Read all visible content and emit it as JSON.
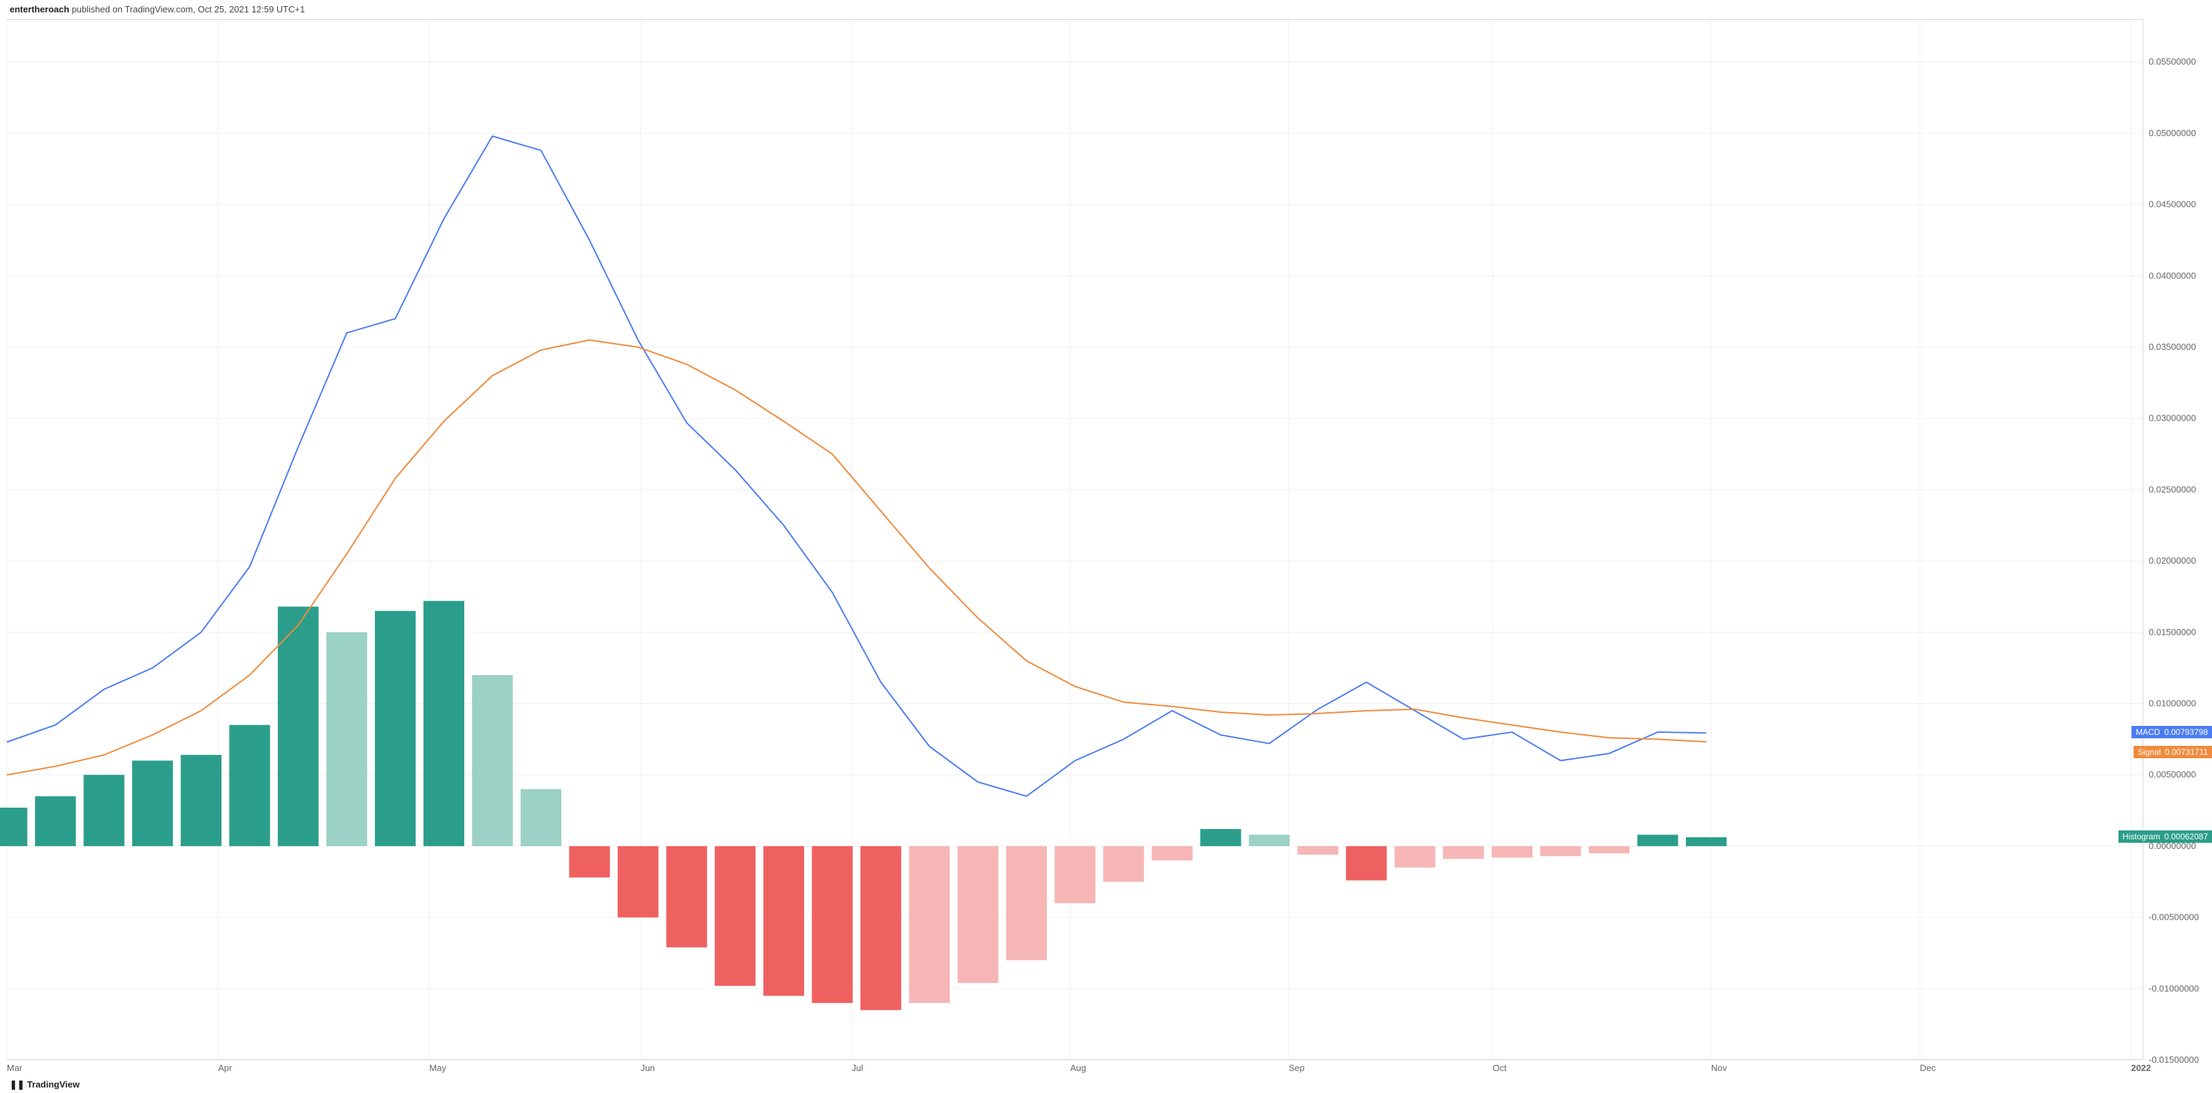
{
  "header": {
    "username": "entertheroach",
    "rest": " published on TradingView.com, Oct 25, 2021 12:59 UTC+1"
  },
  "footer": {
    "logo_glyph": "❚❚",
    "brand": "TradingView"
  },
  "colors": {
    "background": "#ffffff",
    "grid": "#f0f0f0",
    "axis_border": "#d5d5d5",
    "macd_line": "#4b7cf4",
    "signal_line": "#f08a3c",
    "hist_pos_strong": "#2b9e8b",
    "hist_pos_weak": "#9cd1c6",
    "hist_neg_strong": "#ef6161",
    "hist_neg_weak": "#f6b6b6",
    "badge_macd_bg": "#4b7cf4",
    "badge_signal_bg": "#f08a3c",
    "badge_hist_bg": "#2b9e8b",
    "x_label": "#666666",
    "y_label": "#666666"
  },
  "typography": {
    "header_fontsize": 13,
    "tick_fontsize": 13,
    "badge_fontsize": 12,
    "footer_fontsize": 13
  },
  "chart": {
    "type": "macd",
    "y": {
      "min": -0.015,
      "max": 0.058,
      "ticks": [
        "0.05500000",
        "0.05000000",
        "0.04500000",
        "0.04000000",
        "0.03500000",
        "0.03000000",
        "0.02500000",
        "0.02000000",
        "0.01500000",
        "0.01000000",
        "0.00500000",
        "0.00000000",
        "-0.00500000",
        "-0.01000000",
        "-0.01500000"
      ],
      "tick_values": [
        0.055,
        0.05,
        0.045,
        0.04,
        0.035,
        0.03,
        0.025,
        0.02,
        0.015,
        0.01,
        0.005,
        0.0,
        -0.005,
        -0.01,
        -0.015
      ]
    },
    "x": {
      "labels": [
        "Mar",
        "Apr",
        "May",
        "Jun",
        "Jul",
        "Aug",
        "Sep",
        "Oct",
        "Nov",
        "Dec",
        "2022"
      ],
      "positions": [
        0,
        4.35,
        8.7,
        13.05,
        17.4,
        21.9,
        26.4,
        30.6,
        35.1,
        39.4,
        43.75
      ],
      "max_index": 44,
      "year_bold_index": 10
    },
    "badges": {
      "macd": {
        "label": "MACD",
        "value": "0.00793798"
      },
      "signal": {
        "label": "Signal",
        "value": "0.00731711"
      },
      "histogram": {
        "label": "Histogram",
        "value": "0.00062087"
      }
    },
    "macd_series": [
      0.0073,
      0.0085,
      0.011,
      0.0125,
      0.015,
      0.0196,
      0.028,
      0.036,
      0.037,
      0.044,
      0.0498,
      0.0488,
      0.0425,
      0.0355,
      0.0297,
      0.0264,
      0.0225,
      0.0178,
      0.0115,
      0.007,
      0.0045,
      0.0035,
      0.006,
      0.0075,
      0.0095,
      0.0078,
      0.0072,
      0.0096,
      0.0115,
      0.0095,
      0.0075,
      0.008,
      0.006,
      0.0065,
      0.008,
      0.00793798
    ],
    "signal_series": [
      0.005,
      0.0056,
      0.0064,
      0.0078,
      0.0095,
      0.012,
      0.0155,
      0.0205,
      0.0258,
      0.0298,
      0.033,
      0.0348,
      0.0355,
      0.035,
      0.0338,
      0.032,
      0.0298,
      0.0275,
      0.0235,
      0.0195,
      0.016,
      0.013,
      0.0112,
      0.0101,
      0.0098,
      0.0094,
      0.0092,
      0.0093,
      0.0095,
      0.0096,
      0.009,
      0.0085,
      0.008,
      0.0076,
      0.0075,
      0.00731711
    ],
    "histogram": [
      {
        "v": 0.0027,
        "c": "pos_strong"
      },
      {
        "v": 0.0035,
        "c": "pos_strong"
      },
      {
        "v": 0.005,
        "c": "pos_strong"
      },
      {
        "v": 0.006,
        "c": "pos_strong"
      },
      {
        "v": 0.0064,
        "c": "pos_strong"
      },
      {
        "v": 0.0085,
        "c": "pos_strong"
      },
      {
        "v": 0.0168,
        "c": "pos_strong"
      },
      {
        "v": 0.015,
        "c": "pos_weak"
      },
      {
        "v": 0.0165,
        "c": "pos_strong"
      },
      {
        "v": 0.0172,
        "c": "pos_strong"
      },
      {
        "v": 0.012,
        "c": "pos_weak"
      },
      {
        "v": 0.004,
        "c": "pos_weak"
      },
      {
        "v": -0.0022,
        "c": "neg_strong"
      },
      {
        "v": -0.005,
        "c": "neg_strong"
      },
      {
        "v": -0.0071,
        "c": "neg_strong"
      },
      {
        "v": -0.0098,
        "c": "neg_strong"
      },
      {
        "v": -0.0105,
        "c": "neg_strong"
      },
      {
        "v": -0.011,
        "c": "neg_strong"
      },
      {
        "v": -0.0115,
        "c": "neg_strong"
      },
      {
        "v": -0.011,
        "c": "neg_weak"
      },
      {
        "v": -0.0096,
        "c": "neg_weak"
      },
      {
        "v": -0.008,
        "c": "neg_weak"
      },
      {
        "v": -0.004,
        "c": "neg_weak"
      },
      {
        "v": -0.0025,
        "c": "neg_weak"
      },
      {
        "v": -0.001,
        "c": "neg_weak"
      },
      {
        "v": 0.0012,
        "c": "pos_strong"
      },
      {
        "v": 0.0008,
        "c": "pos_weak"
      },
      {
        "v": -0.0006,
        "c": "neg_weak"
      },
      {
        "v": -0.0024,
        "c": "neg_strong"
      },
      {
        "v": -0.0015,
        "c": "neg_weak"
      },
      {
        "v": -0.0009,
        "c": "neg_weak"
      },
      {
        "v": -0.0008,
        "c": "neg_weak"
      },
      {
        "v": -0.0007,
        "c": "neg_weak"
      },
      {
        "v": -0.0005,
        "c": "neg_weak"
      },
      {
        "v": 0.0008,
        "c": "pos_strong"
      },
      {
        "v": 0.00062087,
        "c": "pos_strong"
      }
    ]
  }
}
